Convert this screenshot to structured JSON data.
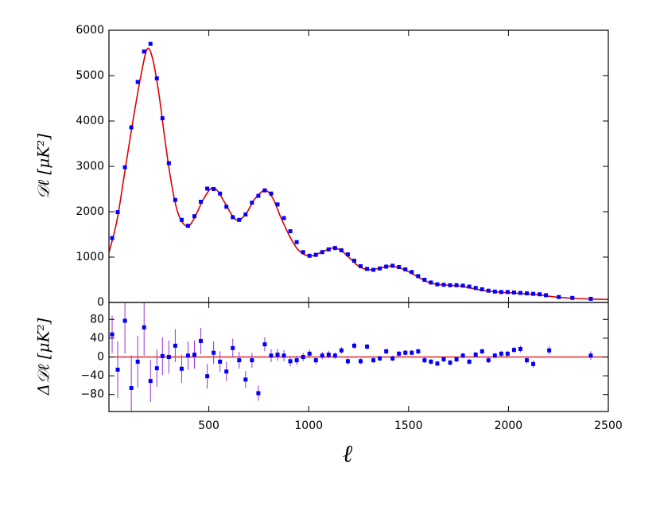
{
  "chart_data": [
    {
      "type": "scatter",
      "ylabel": "𝒟ℓ [μK²]",
      "xlim": [
        0,
        2500
      ],
      "ylim": [
        0,
        6000
      ],
      "yticks": [
        0,
        1000,
        2000,
        3000,
        4000,
        5000,
        6000
      ],
      "x": [
        16,
        44,
        80,
        112,
        144,
        176,
        208,
        240,
        268,
        300,
        332,
        364,
        396,
        428,
        460,
        492,
        524,
        556,
        588,
        620,
        652,
        684,
        716,
        748,
        780,
        812,
        844,
        876,
        908,
        940,
        972,
        1004,
        1036,
        1068,
        1100,
        1132,
        1164,
        1196,
        1228,
        1260,
        1292,
        1324,
        1356,
        1388,
        1420,
        1452,
        1484,
        1516,
        1548,
        1580,
        1612,
        1644,
        1676,
        1708,
        1740,
        1772,
        1804,
        1836,
        1868,
        1900,
        1932,
        1964,
        1996,
        2028,
        2060,
        2092,
        2124,
        2156,
        2188,
        2252,
        2320,
        2412
      ],
      "series": [
        {
          "color": "#0000ff",
          "values": [
            1420,
            1990,
            2980,
            3860,
            4860,
            5530,
            5700,
            4940,
            4060,
            3070,
            2260,
            1820,
            1690,
            1900,
            2220,
            2510,
            2500,
            2400,
            2110,
            1880,
            1820,
            1940,
            2200,
            2350,
            2470,
            2400,
            2160,
            1860,
            1570,
            1330,
            1110,
            1030,
            1050,
            1110,
            1170,
            1200,
            1150,
            1060,
            920,
            800,
            740,
            720,
            750,
            790,
            810,
            780,
            730,
            670,
            580,
            500,
            440,
            400,
            390,
            380,
            380,
            370,
            350,
            320,
            290,
            260,
            240,
            230,
            230,
            220,
            210,
            200,
            190,
            180,
            160,
            120,
            100,
            80
          ]
        }
      ],
      "model": {
        "color": "#dd0000",
        "x": [
          0,
          40,
          80,
          120,
          160,
          192,
          220,
          250,
          280,
          310,
          340,
          370,
          400,
          430,
          470,
          510,
          540,
          580,
          620,
          650,
          690,
          730,
          780,
          820,
          860,
          900,
          940,
          980,
          1020,
          1070,
          1120,
          1160,
          1200,
          1250,
          1300,
          1350,
          1400,
          1440,
          1490,
          1540,
          1590,
          1640,
          1700,
          1760,
          1820,
          1880,
          1950,
          2020,
          2090,
          2150,
          2200,
          2260,
          2330,
          2420,
          2500
        ],
        "values": [
          1100,
          1800,
          2900,
          4000,
          5000,
          5590,
          5350,
          4600,
          3600,
          2700,
          2050,
          1750,
          1690,
          1880,
          2250,
          2510,
          2480,
          2200,
          1900,
          1810,
          1980,
          2280,
          2470,
          2300,
          1880,
          1500,
          1200,
          1050,
          1030,
          1120,
          1200,
          1150,
          1000,
          800,
          720,
          750,
          800,
          780,
          700,
          580,
          460,
          400,
          380,
          360,
          310,
          260,
          230,
          210,
          190,
          170,
          140,
          110,
          90,
          75,
          65
        ]
      }
    },
    {
      "type": "scatter",
      "ylabel": "Δ𝒟ℓ [μK²]",
      "xlabel": "ℓ",
      "xlim": [
        0,
        2500
      ],
      "ylim": [
        -116,
        116
      ],
      "xticks": [
        500,
        1000,
        1500,
        2000,
        2500
      ],
      "yticks": [
        {
          "value": -80,
          "label": "−80"
        },
        {
          "value": -40,
          "label": "−40"
        },
        0,
        40,
        80
      ],
      "reference_line": {
        "value": 0,
        "color": "#dd0000"
      },
      "x": [
        16,
        44,
        80,
        112,
        144,
        176,
        208,
        240,
        268,
        300,
        332,
        364,
        396,
        428,
        460,
        492,
        524,
        556,
        588,
        620,
        652,
        684,
        716,
        748,
        780,
        812,
        844,
        876,
        908,
        940,
        972,
        1004,
        1036,
        1068,
        1100,
        1132,
        1164,
        1196,
        1228,
        1260,
        1292,
        1324,
        1356,
        1388,
        1420,
        1452,
        1484,
        1516,
        1548,
        1580,
        1612,
        1644,
        1676,
        1708,
        1740,
        1772,
        1804,
        1836,
        1868,
        1900,
        1932,
        1964,
        1996,
        2028,
        2060,
        2092,
        2124,
        2204,
        2412
      ],
      "series": [
        {
          "color": "#0000ff",
          "error_color": "#9933cc",
          "values": [
            48,
            -27,
            77,
            -66,
            -10,
            63,
            -51,
            -24,
            2,
            0,
            24,
            -25,
            3,
            5,
            34,
            -41,
            9,
            -10,
            -31,
            19,
            -7,
            -48,
            -7,
            -77,
            27,
            3,
            5,
            3,
            -9,
            -7,
            0,
            7,
            -7,
            3,
            5,
            3,
            14,
            -9,
            24,
            -9,
            22,
            -7,
            -3,
            12,
            -3,
            7,
            9,
            9,
            12,
            -7,
            -10,
            -14,
            -5,
            -12,
            -5,
            3,
            -10,
            5,
            12,
            -7,
            3,
            7,
            7,
            15,
            17,
            -7,
            -15,
            14,
            3
          ],
          "errors": [
            40,
            60,
            70,
            70,
            55,
            60,
            45,
            40,
            40,
            35,
            35,
            30,
            30,
            30,
            28,
            26,
            24,
            22,
            20,
            20,
            18,
            18,
            16,
            16,
            15,
            14,
            13,
            12,
            11,
            10,
            9,
            9,
            8,
            8,
            8,
            7,
            7,
            7,
            7,
            6,
            6,
            6,
            6,
            6,
            6,
            6,
            6,
            6,
            6,
            6,
            6,
            6,
            6,
            6,
            6,
            6,
            6,
            6,
            6,
            6,
            6,
            6,
            6,
            6,
            7,
            7,
            8,
            9,
            9
          ]
        }
      ]
    }
  ]
}
